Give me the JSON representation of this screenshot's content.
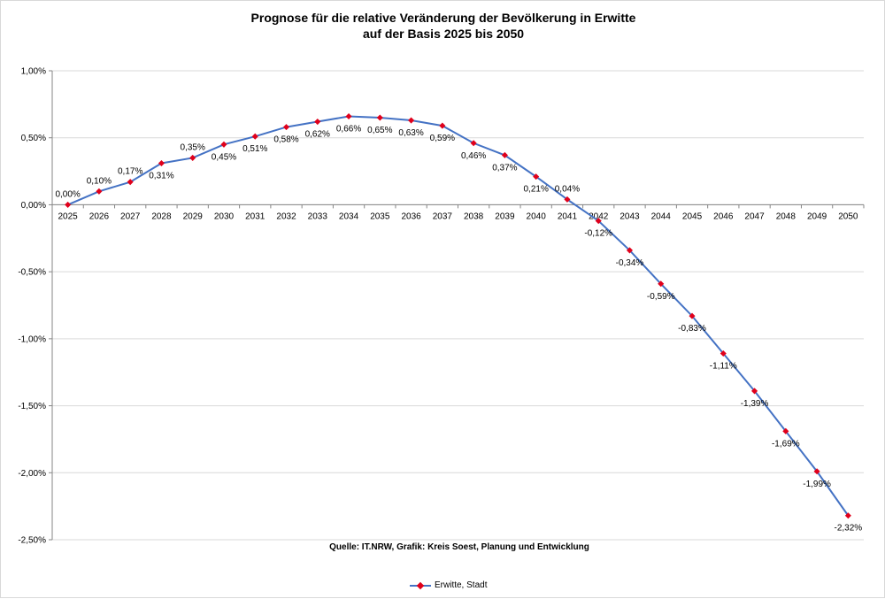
{
  "chart_data": {
    "type": "line",
    "title_line1": "Prognose für die relative Veränderung der Bevölkerung in Erwitte",
    "title_line2": "auf der Basis 2025 bis 2050",
    "source": "Quelle: IT.NRW, Grafik: Kreis Soest, Planung und Entwicklung",
    "categories": [
      "2025",
      "2026",
      "2027",
      "2028",
      "2029",
      "2030",
      "2031",
      "2032",
      "2033",
      "2034",
      "2035",
      "2036",
      "2037",
      "2038",
      "2039",
      "2040",
      "2041",
      "2042",
      "2043",
      "2044",
      "2045",
      "2046",
      "2047",
      "2048",
      "2049",
      "2050"
    ],
    "series": [
      {
        "name": "Erwitte, Stadt",
        "values": [
          0.0,
          0.1,
          0.17,
          0.31,
          0.35,
          0.45,
          0.51,
          0.58,
          0.62,
          0.66,
          0.65,
          0.63,
          0.59,
          0.46,
          0.37,
          0.21,
          0.04,
          -0.12,
          -0.34,
          -0.59,
          -0.83,
          -1.11,
          -1.39,
          -1.69,
          -1.99,
          -2.32
        ],
        "labels": [
          "0,00%",
          "0,10%",
          "0,17%",
          "0,31%",
          "0,35%",
          "0,45%",
          "0,51%",
          "0,58%",
          "0,62%",
          "0,66%",
          "0,65%",
          "0,63%",
          "0,59%",
          "0,46%",
          "0,37%",
          "0,21%",
          "0,04%",
          "-0,12%",
          "-0,34%",
          "-0,59%",
          "-0,83%",
          "-1,11%",
          "-1,39%",
          "-1,69%",
          "-1,99%",
          "-2,32%"
        ],
        "line_color": "#4472c4",
        "marker_color": "#e0001b"
      }
    ],
    "ylim": [
      -2.5,
      1.0
    ],
    "yticks": [
      1.0,
      0.5,
      0.0,
      -0.5,
      -1.0,
      -1.5,
      -2.0,
      -2.5
    ],
    "ytick_labels": [
      "1,00%",
      "0,50%",
      "0,00%",
      "-0,50%",
      "-1,00%",
      "-1,50%",
      "-2,00%",
      "-2,50%"
    ],
    "grid": true,
    "legend": "bottom"
  }
}
